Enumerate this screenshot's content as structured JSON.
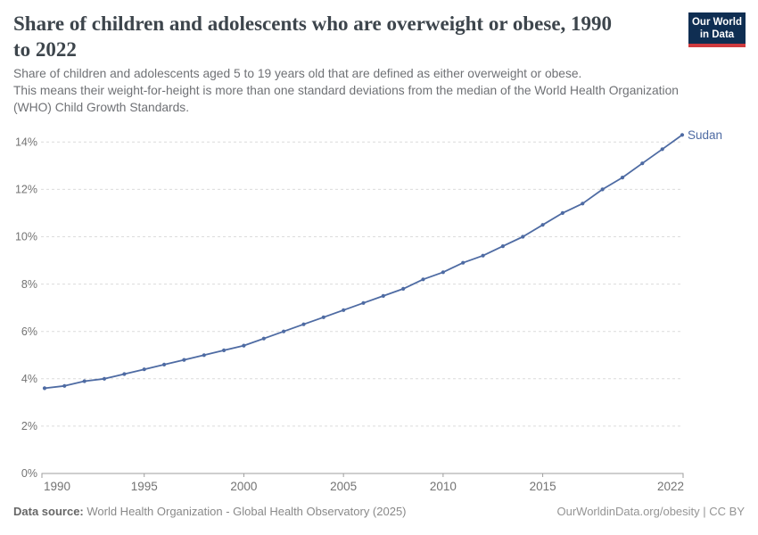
{
  "header": {
    "title": "Share of children and adolescents who are overweight or obese, 1990\nto 2022",
    "subtitle": "Share of children and adolescents aged 5 to 19 years old that are defined as either overweight or obese.\nThis means their weight-for-height is more than one standard deviations from the median of the World Health Organization\n(WHO) Child Growth Standards.",
    "logo": {
      "line1": "Our World",
      "line2": "in Data"
    }
  },
  "chart_data": {
    "type": "line",
    "title": "Share of children and adolescents who are overweight or obese, 1990 to 2022",
    "xlabel": "",
    "ylabel": "",
    "xlim": [
      1990,
      2022
    ],
    "ylim": [
      0,
      14.5
    ],
    "grid": "horizontal-dashed",
    "legend_position": "end-of-line-label",
    "x_ticks": [
      1990,
      1995,
      2000,
      2005,
      2010,
      2015,
      2022
    ],
    "y_ticks": [
      "0%",
      "2%",
      "4%",
      "6%",
      "8%",
      "10%",
      "12%",
      "14%"
    ],
    "series": [
      {
        "name": "Sudan",
        "x": [
          1990,
          1991,
          1992,
          1993,
          1994,
          1995,
          1996,
          1997,
          1998,
          1999,
          2000,
          2001,
          2002,
          2003,
          2004,
          2005,
          2006,
          2007,
          2008,
          2009,
          2010,
          2011,
          2012,
          2013,
          2014,
          2015,
          2016,
          2017,
          2018,
          2019,
          2020,
          2021,
          2022
        ],
        "values": [
          3.6,
          3.7,
          3.9,
          4.0,
          4.2,
          4.4,
          4.6,
          4.8,
          5.0,
          5.2,
          5.4,
          5.7,
          6.0,
          6.3,
          6.6,
          6.9,
          7.2,
          7.5,
          7.8,
          8.2,
          8.5,
          8.9,
          9.2,
          9.6,
          10.0,
          10.5,
          11.0,
          11.4,
          12.0,
          12.5,
          13.1,
          13.7,
          14.3
        ]
      }
    ]
  },
  "footer": {
    "source_label": "Data source:",
    "source_text": " World Health Organization - Global Health Observatory (2025)",
    "right_text": "OurWorldinData.org/obesity | CC BY"
  },
  "colors": {
    "line": "#4e6ba3",
    "series_label": "#4e6ba3",
    "grid": "#dcdcdc",
    "axis": "#9e9e9e",
    "tick_label": "#737373",
    "logo_bg": "#0f2e52",
    "logo_stripe": "#cf3a3e"
  }
}
